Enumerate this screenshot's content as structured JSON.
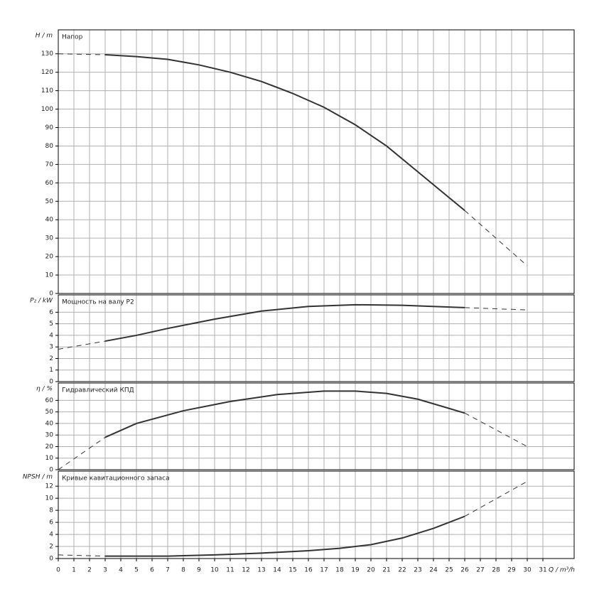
{
  "chart_data": [
    {
      "type": "line",
      "y_label": "H / m",
      "title": "Напор",
      "color": "#333333",
      "x": [
        0,
        3,
        5,
        7,
        9,
        11,
        13,
        15,
        17,
        19,
        21,
        23,
        25,
        26,
        28,
        30
      ],
      "values": [
        130,
        129.5,
        128.5,
        127,
        124,
        120,
        115,
        108.5,
        101,
        91.5,
        80,
        66,
        52,
        45,
        30,
        15
      ],
      "solid_range": [
        3,
        26
      ],
      "xlim": [
        0,
        33
      ],
      "ylim": [
        0,
        143
      ],
      "yticks": [
        0,
        10,
        20,
        30,
        40,
        50,
        60,
        70,
        80,
        90,
        100,
        110,
        120,
        130
      ],
      "grid": true
    },
    {
      "type": "line",
      "y_label": "P₂ / kW",
      "title": "Мощность на валу P2",
      "color": "#333333",
      "x": [
        0,
        3,
        5,
        7,
        10,
        13,
        16,
        19,
        22,
        26,
        30
      ],
      "values": [
        2.8,
        3.5,
        4.0,
        4.6,
        5.4,
        6.1,
        6.5,
        6.65,
        6.6,
        6.4,
        6.2
      ],
      "solid_range": [
        3,
        26
      ],
      "xlim": [
        0,
        33
      ],
      "ylim": [
        0,
        7.5
      ],
      "yticks": [
        0,
        1,
        2,
        3,
        4,
        5,
        6
      ],
      "grid": true
    },
    {
      "type": "line",
      "y_label": "η / %",
      "title": "Гидравлический КПД",
      "color": "#333333",
      "x": [
        0,
        3,
        5,
        8,
        11,
        14,
        17,
        19,
        21,
        23,
        26,
        30
      ],
      "values": [
        0,
        28,
        40,
        51,
        59,
        65,
        68,
        68,
        66,
        61,
        49,
        20
      ],
      "solid_range": [
        3,
        26
      ],
      "xlim": [
        0,
        33
      ],
      "ylim": [
        0,
        75
      ],
      "yticks": [
        0,
        10,
        20,
        30,
        40,
        50,
        60
      ],
      "grid": true
    },
    {
      "type": "line",
      "y_label": "NPSH / m",
      "title": "Кривые кавитационного запаса",
      "color": "#333333",
      "x": [
        0,
        3,
        7,
        10,
        13,
        16,
        18,
        20,
        22,
        24,
        26,
        30
      ],
      "values": [
        0.6,
        0.4,
        0.4,
        0.6,
        0.9,
        1.3,
        1.7,
        2.3,
        3.4,
        5.0,
        7.0,
        12.8
      ],
      "solid_range": [
        3,
        26
      ],
      "xlim": [
        0,
        33
      ],
      "ylim": [
        0,
        14.5
      ],
      "yticks": [
        0,
        2,
        4,
        6,
        8,
        10,
        12
      ],
      "grid": true,
      "x_label": "Q / m³/h",
      "xticks": [
        0,
        1,
        2,
        3,
        4,
        5,
        6,
        7,
        8,
        9,
        10,
        11,
        12,
        13,
        14,
        15,
        16,
        17,
        18,
        19,
        20,
        21,
        22,
        23,
        24,
        25,
        26,
        27,
        28,
        29,
        30,
        31
      ]
    }
  ]
}
